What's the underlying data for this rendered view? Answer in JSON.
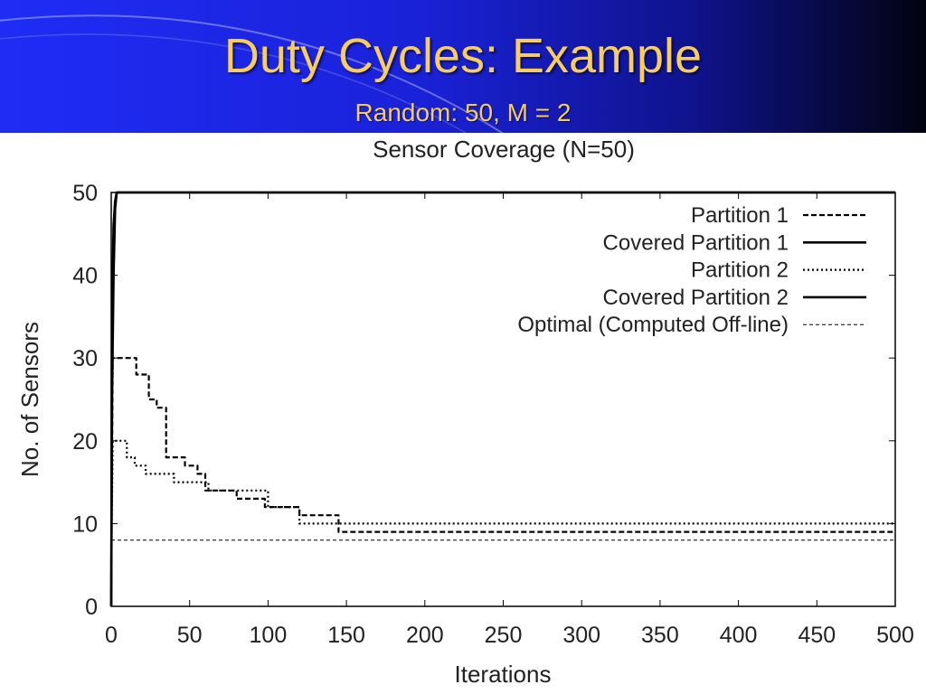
{
  "slide": {
    "title": "Duty Cycles: Example",
    "subtitle": "Random: 50, M = 2",
    "banner_color": "#1f2cf5",
    "title_color": "#f7cd61"
  },
  "chart_data": {
    "type": "line",
    "title": "Sensor Coverage (N=50)",
    "xlabel": "Iterations",
    "ylabel": "No. of Sensors",
    "xlim": [
      0,
      500
    ],
    "ylim": [
      0,
      50
    ],
    "xticks": [
      0,
      50,
      100,
      150,
      200,
      250,
      300,
      350,
      400,
      450,
      500
    ],
    "yticks": [
      0,
      10,
      20,
      30,
      40,
      50
    ],
    "grid": false,
    "legend_position": "top-right",
    "series": [
      {
        "name": "Partition 1",
        "style": "dashed",
        "stroke_width": 2.2,
        "points": [
          [
            0,
            5
          ],
          [
            1,
            30
          ],
          [
            2,
            30
          ],
          [
            16,
            30
          ],
          [
            16,
            28
          ],
          [
            24,
            28
          ],
          [
            24,
            25
          ],
          [
            29,
            25
          ],
          [
            29,
            24
          ],
          [
            35,
            24
          ],
          [
            35,
            18
          ],
          [
            47,
            18
          ],
          [
            47,
            17
          ],
          [
            55,
            17
          ],
          [
            55,
            16
          ],
          [
            60,
            16
          ],
          [
            60,
            14
          ],
          [
            80,
            14
          ],
          [
            80,
            13
          ],
          [
            98,
            13
          ],
          [
            98,
            12
          ],
          [
            120,
            12
          ],
          [
            120,
            11
          ],
          [
            145,
            11
          ],
          [
            145,
            9
          ],
          [
            500,
            9
          ]
        ]
      },
      {
        "name": "Covered Partition 1",
        "style": "solid",
        "stroke_width": 2.6,
        "points": [
          [
            0,
            0
          ],
          [
            0.5,
            25
          ],
          [
            1.5,
            40
          ],
          [
            2.5,
            48
          ],
          [
            3.5,
            50
          ],
          [
            500,
            50
          ]
        ]
      },
      {
        "name": "Partition 2",
        "style": "dotted",
        "stroke_width": 2.2,
        "points": [
          [
            0,
            5
          ],
          [
            1,
            20
          ],
          [
            2,
            20
          ],
          [
            10,
            20
          ],
          [
            10,
            18
          ],
          [
            15,
            18
          ],
          [
            15,
            17
          ],
          [
            22,
            17
          ],
          [
            22,
            16
          ],
          [
            40,
            16
          ],
          [
            40,
            15
          ],
          [
            62,
            15
          ],
          [
            62,
            14
          ],
          [
            100,
            14
          ],
          [
            100,
            12
          ],
          [
            120,
            12
          ],
          [
            120,
            10
          ],
          [
            500,
            10
          ]
        ]
      },
      {
        "name": "Covered Partition 2",
        "style": "solid",
        "stroke_width": 2.6,
        "points": [
          [
            0,
            0
          ],
          [
            0.5,
            36
          ],
          [
            1.5,
            46
          ],
          [
            2.5,
            49
          ],
          [
            3.5,
            50
          ],
          [
            500,
            50
          ]
        ]
      },
      {
        "name": "Optimal (Computed Off-line)",
        "style": "thin-dashed",
        "stroke_width": 1,
        "points": [
          [
            0,
            8
          ],
          [
            500,
            8
          ]
        ]
      }
    ]
  }
}
